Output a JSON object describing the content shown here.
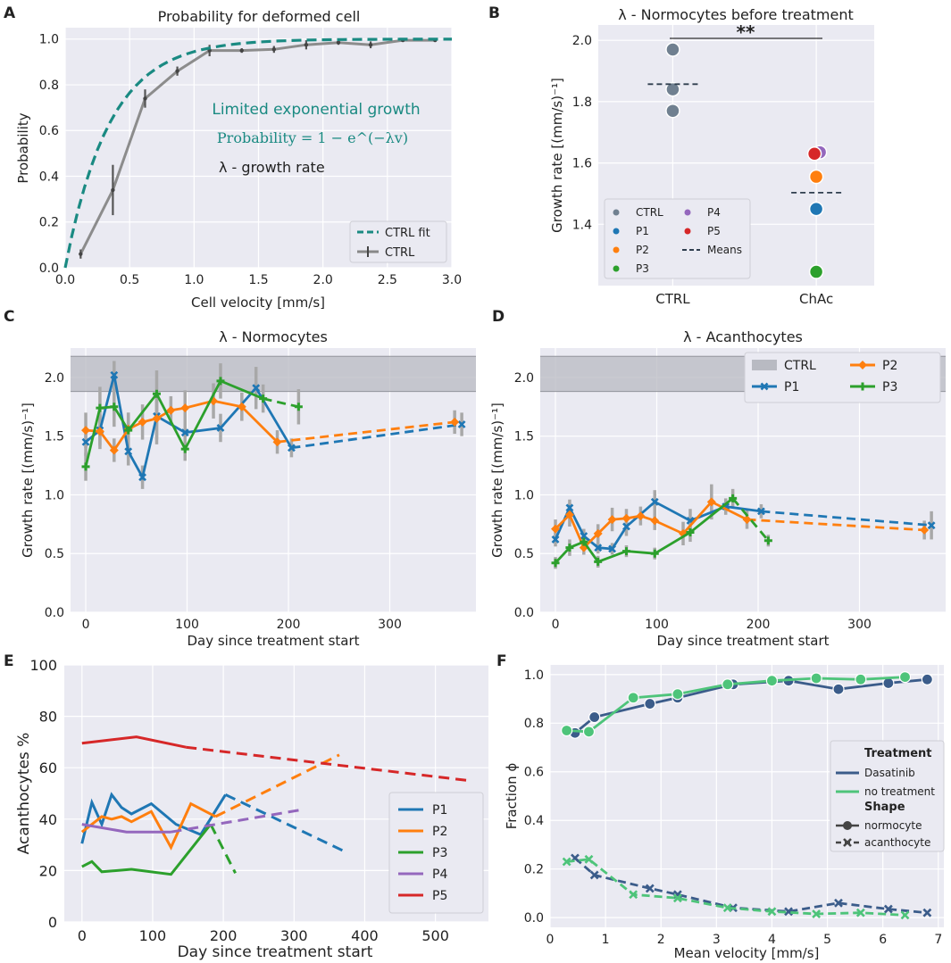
{
  "figure": {
    "panels": [
      {
        "letter": "A",
        "title": "Probability for deformed cell",
        "xlabel": "Cell velocity [mm/s]",
        "ylabel": "Probability"
      },
      {
        "letter": "B",
        "title": "λ - Normocytes before treatment",
        "xlabel": "",
        "ylabel": "Growth rate [(mm/s)⁻¹]"
      },
      {
        "letter": "C",
        "title": "λ - Normocytes",
        "xlabel": "Day since treatment start",
        "ylabel": "Growth rate [(mm/s)⁻¹]"
      },
      {
        "letter": "D",
        "title": "λ - Acanthocytes",
        "xlabel": "Day since treatment start",
        "ylabel": "Growth rate [(mm/s)⁻¹]"
      },
      {
        "letter": "E",
        "title": "",
        "xlabel": "Day since treatment start",
        "ylabel": "Acanthocytes %"
      },
      {
        "letter": "F",
        "title": "",
        "xlabel": "Mean velocity [mm/s]",
        "ylabel": "Fraction ϕ"
      }
    ],
    "annotations": {
      "a_line1": "Limited exponential growth",
      "a_line2": "Probability = 1 − e^(−λv)",
      "a_line3": "λ - growth rate",
      "b_sig": "**"
    },
    "colors": {
      "ctrl": "#708090",
      "p1": "#1f77b4",
      "p2": "#ff7f0e",
      "p3": "#2ca02c",
      "p4": "#9467bd",
      "p5": "#d62728",
      "fit": "#1a8a82",
      "dasatinib": "#3b5c8a",
      "notreat": "#4ec47a",
      "bg": "#eaeaf2"
    }
  },
  "chart_data": [
    {
      "panel": "A",
      "type": "line",
      "title": "Probability for deformed cell",
      "xlabel": "Cell velocity [mm/s]",
      "ylabel": "Probability",
      "xlim": [
        0,
        3
      ],
      "ylim": [
        0,
        1.05
      ],
      "xticks": [
        0,
        0.5,
        1,
        1.5,
        2,
        2.5,
        3
      ],
      "yticks": [
        0,
        0.2,
        0.4,
        0.6,
        0.8,
        1
      ],
      "fit": {
        "name": "CTRL fit",
        "lambda": 2.9
      },
      "series": [
        {
          "name": "CTRL",
          "x": [
            0.12,
            0.37,
            0.62,
            0.87,
            1.12,
            1.37,
            1.62,
            1.87,
            2.12,
            2.37,
            2.62,
            2.87
          ],
          "y": [
            0.06,
            0.34,
            0.74,
            0.86,
            0.95,
            0.95,
            0.955,
            0.975,
            0.985,
            0.975,
            0.995,
            0.995
          ],
          "err": [
            0.02,
            0.11,
            0.04,
            0.02,
            0.025,
            0.01,
            0.015,
            0.02,
            0.01,
            0.015,
            0.005,
            0.005
          ]
        }
      ],
      "legend": [
        "CTRL fit",
        "CTRL"
      ],
      "legend_loc": "lower-right"
    },
    {
      "panel": "B",
      "type": "scatter",
      "title": "λ - Normocytes before treatment",
      "ylabel": "Growth rate [(mm/s)⁻¹]",
      "categories": [
        "CTRL",
        "ChAc"
      ],
      "ylim": [
        1.2,
        2.05
      ],
      "yticks": [
        1.4,
        1.6,
        1.8,
        2.0
      ],
      "points": [
        {
          "cat": "CTRL",
          "name": "CTRL",
          "value": 1.97
        },
        {
          "cat": "CTRL",
          "name": "CTRL",
          "value": 1.84
        },
        {
          "cat": "CTRL",
          "name": "CTRL",
          "value": 1.77
        },
        {
          "cat": "ChAc",
          "name": "P4",
          "value": 1.635
        },
        {
          "cat": "ChAc",
          "name": "P5",
          "value": 1.63
        },
        {
          "cat": "ChAc",
          "name": "P2",
          "value": 1.555
        },
        {
          "cat": "ChAc",
          "name": "P1",
          "value": 1.45
        },
        {
          "cat": "ChAc",
          "name": "P3",
          "value": 1.245
        }
      ],
      "means": [
        1.857,
        1.503
      ],
      "legend": [
        "CTRL",
        "P1",
        "P2",
        "P3",
        "P4",
        "P5",
        "Means"
      ],
      "legend_loc": "lower-left"
    },
    {
      "panel": "C",
      "type": "line",
      "title": "λ - Normocytes",
      "xlabel": "Day since treatment start",
      "ylabel": "Growth rate [(mm/s)⁻¹]",
      "xlim": [
        -15,
        385
      ],
      "ylim": [
        0,
        2.25
      ],
      "xticks": [
        0,
        100,
        200,
        300
      ],
      "yticks": [
        0,
        0.5,
        1,
        1.5,
        2
      ],
      "ctrl_band": [
        1.88,
        2.18
      ],
      "series": [
        {
          "name": "P1",
          "x": [
            0,
            14,
            28,
            42,
            56,
            70,
            98,
            133,
            168,
            203,
            371
          ],
          "y": [
            1.45,
            1.55,
            2.02,
            1.37,
            1.15,
            1.67,
            1.53,
            1.57,
            1.91,
            1.4,
            1.6
          ],
          "err": [
            0.12,
            0.13,
            0.12,
            0.12,
            0.1,
            0.2,
            0.12,
            0.12,
            0.18,
            0.08,
            0.1
          ],
          "dash_from": 9
        },
        {
          "name": "P2",
          "x": [
            0,
            14,
            28,
            42,
            56,
            70,
            84,
            98,
            126,
            154,
            189,
            364
          ],
          "y": [
            1.55,
            1.54,
            1.38,
            1.56,
            1.62,
            1.65,
            1.72,
            1.74,
            1.8,
            1.75,
            1.45,
            1.62
          ],
          "err": [
            0.15,
            0.15,
            0.1,
            0.14,
            0.15,
            0.22,
            0.12,
            0.15,
            0.15,
            0.12,
            0.1,
            0.1
          ],
          "dash_from": 10
        },
        {
          "name": "P3",
          "x": [
            0,
            14,
            28,
            42,
            70,
            98,
            133,
            175,
            210
          ],
          "y": [
            1.24,
            1.74,
            1.75,
            1.55,
            1.86,
            1.39,
            1.97,
            1.82,
            1.75
          ],
          "err": [
            0.12,
            0.18,
            0.17,
            0.15,
            0.2,
            0.1,
            0.15,
            0.12,
            0.15
          ],
          "dash_from": 7
        }
      ]
    },
    {
      "panel": "D",
      "type": "line",
      "title": "λ - Acanthocytes",
      "xlabel": "Day since treatment start",
      "ylabel": "Growth rate [(mm/s)⁻¹]",
      "xlim": [
        -15,
        385
      ],
      "ylim": [
        0,
        2.25
      ],
      "xticks": [
        0,
        100,
        200,
        300
      ],
      "yticks": [
        0,
        0.5,
        1,
        1.5,
        2
      ],
      "ctrl_band": [
        1.88,
        2.18
      ],
      "series": [
        {
          "name": "P1",
          "x": [
            0,
            14,
            28,
            42,
            56,
            70,
            98,
            133,
            168,
            203,
            371
          ],
          "y": [
            0.62,
            0.89,
            0.65,
            0.55,
            0.54,
            0.73,
            0.94,
            0.78,
            0.9,
            0.86,
            0.74
          ],
          "err": [
            0.06,
            0.07,
            0.06,
            0.05,
            0.05,
            0.08,
            0.1,
            0.1,
            0.07,
            0.06,
            0.12
          ],
          "dash_from": 9
        },
        {
          "name": "P2",
          "x": [
            0,
            14,
            28,
            42,
            56,
            70,
            84,
            98,
            126,
            154,
            189,
            364
          ],
          "y": [
            0.71,
            0.83,
            0.55,
            0.67,
            0.79,
            0.8,
            0.82,
            0.78,
            0.67,
            0.94,
            0.79,
            0.7
          ],
          "err": [
            0.08,
            0.1,
            0.06,
            0.08,
            0.1,
            0.08,
            0.08,
            0.08,
            0.1,
            0.15,
            0.08,
            0.08
          ],
          "dash_from": 10
        },
        {
          "name": "P3",
          "x": [
            0,
            14,
            28,
            42,
            70,
            98,
            133,
            175,
            210
          ],
          "y": [
            0.42,
            0.55,
            0.6,
            0.43,
            0.52,
            0.5,
            0.68,
            0.97,
            0.61
          ],
          "err": [
            0.05,
            0.07,
            0.06,
            0.05,
            0.05,
            0.05,
            0.08,
            0.08,
            0.05
          ],
          "dash_from": 7
        }
      ],
      "legend": [
        "CTRL",
        "P1",
        "P2",
        "P3"
      ],
      "legend_loc": "top-right"
    },
    {
      "panel": "E",
      "type": "line",
      "xlabel": "Day since treatment start",
      "ylabel": "Acanthocytes %",
      "xlim": [
        -25,
        575
      ],
      "ylim": [
        0,
        100
      ],
      "xticks": [
        0,
        100,
        200,
        300,
        400,
        500
      ],
      "yticks": [
        0,
        20,
        40,
        60,
        80,
        100
      ],
      "series": [
        {
          "name": "P1",
          "x": [
            0,
            14,
            28,
            42,
            56,
            70,
            98,
            133,
            168,
            203,
            371
          ],
          "y": [
            30.5,
            46.5,
            38,
            49.5,
            44.5,
            42,
            46,
            38,
            34,
            49.5,
            27.5
          ],
          "dash_from": 9
        },
        {
          "name": "P2",
          "x": [
            0,
            14,
            28,
            42,
            56,
            70,
            98,
            126,
            154,
            189,
            364
          ],
          "y": [
            35,
            38,
            41,
            40,
            41,
            39,
            43,
            29,
            46,
            41,
            65
          ],
          "dash_from": 9
        },
        {
          "name": "P3",
          "x": [
            0,
            14,
            28,
            70,
            126,
            182,
            217
          ],
          "y": [
            21.5,
            23.5,
            19.5,
            20.5,
            18.5,
            38,
            19
          ],
          "dash_from": 5
        },
        {
          "name": "P4",
          "x": [
            0,
            63,
            126,
            308
          ],
          "y": [
            38,
            35,
            35,
            43.5
          ],
          "dash_from": 2
        },
        {
          "name": "P5",
          "x": [
            0,
            77,
            147,
            547
          ],
          "y": [
            69.5,
            72,
            68,
            55
          ],
          "dash_from": 2
        }
      ],
      "legend": [
        "P1",
        "P2",
        "P3",
        "P4",
        "P5"
      ],
      "legend_loc": "lower-right"
    },
    {
      "panel": "F",
      "type": "line",
      "xlabel": "Mean velocity [mm/s]",
      "ylabel": "Fraction ϕ",
      "xlim": [
        0,
        7.1
      ],
      "ylim": [
        -0.04,
        1.04
      ],
      "xticks": [
        0,
        1,
        2,
        3,
        4,
        5,
        6,
        7
      ],
      "yticks": [
        0,
        0.2,
        0.4,
        0.6,
        0.8,
        1
      ],
      "series": [
        {
          "name": "Dasatinib normocyte",
          "treatment": "Dasatinib",
          "shape": "normocyte",
          "x": [
            0.45,
            0.8,
            1.8,
            2.3,
            3.3,
            4.3,
            5.2,
            6.1,
            6.8
          ],
          "y": [
            0.76,
            0.825,
            0.88,
            0.905,
            0.96,
            0.975,
            0.94,
            0.965,
            0.98
          ]
        },
        {
          "name": "no treatment normocyte",
          "treatment": "no treatment",
          "shape": "normocyte",
          "x": [
            0.3,
            0.7,
            1.5,
            2.3,
            3.2,
            4.0,
            4.8,
            5.6,
            6.4
          ],
          "y": [
            0.77,
            0.765,
            0.905,
            0.92,
            0.96,
            0.975,
            0.985,
            0.98,
            0.99
          ]
        },
        {
          "name": "Dasatinib acanthocyte",
          "treatment": "Dasatinib",
          "shape": "acanthocyte",
          "x": [
            0.45,
            0.8,
            1.8,
            2.3,
            3.3,
            4.3,
            5.2,
            6.1,
            6.8
          ],
          "y": [
            0.245,
            0.175,
            0.12,
            0.095,
            0.04,
            0.025,
            0.06,
            0.035,
            0.02
          ]
        },
        {
          "name": "no treatment acanthocyte",
          "treatment": "no treatment",
          "shape": "acanthocyte",
          "x": [
            0.3,
            0.7,
            1.5,
            2.3,
            3.2,
            4.0,
            4.8,
            5.6,
            6.4
          ],
          "y": [
            0.23,
            0.24,
            0.095,
            0.08,
            0.04,
            0.025,
            0.015,
            0.02,
            0.01
          ]
        }
      ],
      "legend": {
        "title1": "Treatment",
        "items1": [
          "Dasatinib",
          "no treatment"
        ],
        "title2": "Shape",
        "items2": [
          "normocyte",
          "acanthocyte"
        ]
      },
      "legend_loc": "center-right"
    }
  ]
}
